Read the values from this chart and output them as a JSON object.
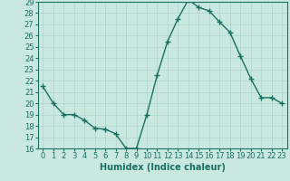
{
  "x": [
    0,
    1,
    2,
    3,
    4,
    5,
    6,
    7,
    8,
    9,
    10,
    11,
    12,
    13,
    14,
    15,
    16,
    17,
    18,
    19,
    20,
    21,
    22,
    23
  ],
  "y": [
    21.5,
    20.0,
    19.0,
    19.0,
    18.5,
    17.8,
    17.7,
    17.3,
    16.0,
    16.0,
    19.0,
    22.5,
    25.5,
    27.5,
    29.2,
    28.5,
    28.2,
    27.2,
    26.3,
    24.2,
    22.2,
    20.5,
    20.5,
    20.0
  ],
  "line_color": "#1a7060",
  "marker": "+",
  "markersize": 4,
  "linewidth": 1.0,
  "xlabel": "Humidex (Indice chaleur)",
  "ylim": [
    16,
    29
  ],
  "yticks": [
    16,
    17,
    18,
    19,
    20,
    21,
    22,
    23,
    24,
    25,
    26,
    27,
    28,
    29
  ],
  "xticks": [
    0,
    1,
    2,
    3,
    4,
    5,
    6,
    7,
    8,
    9,
    10,
    11,
    12,
    13,
    14,
    15,
    16,
    17,
    18,
    19,
    20,
    21,
    22,
    23
  ],
  "xtick_labels": [
    "0",
    "1",
    "2",
    "3",
    "4",
    "5",
    "6",
    "7",
    "8",
    "9",
    "10",
    "11",
    "12",
    "13",
    "14",
    "15",
    "16",
    "17",
    "18",
    "19",
    "20",
    "21",
    "22",
    "23"
  ],
  "grid_color": "#aed4cc",
  "bg_color": "#c8e8e0",
  "xlabel_fontsize": 7,
  "tick_fontsize": 6,
  "xlim_left": -0.5,
  "xlim_right": 23.5
}
